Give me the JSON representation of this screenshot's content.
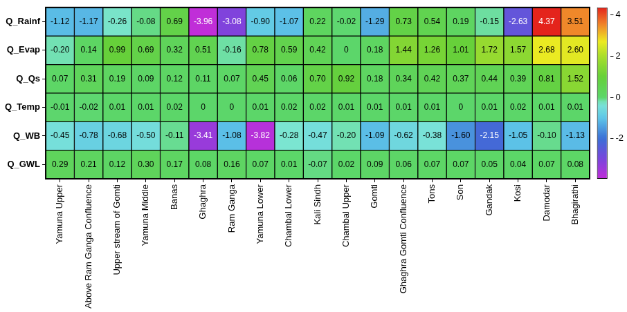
{
  "chart_data": {
    "type": "heatmap",
    "categories": [
      "Yamuna Upper",
      "Above Ram Ganga Confluence",
      "Upper stream of Gomti",
      "Yamuna Middle",
      "Banas",
      "Ghaghra",
      "Ram Ganga",
      "Yamuna Lower",
      "Chambal Lower",
      "Kali Sindh",
      "Chambal Upper",
      "Gomti",
      "Ghaghra Gomti Confluence",
      "Tons",
      "Son",
      "Gandak",
      "Kosi",
      "Damodar",
      "Bhagirathi"
    ],
    "series": [
      {
        "name": "Q_Rainf",
        "values": [
          -1.12,
          -1.17,
          -0.26,
          -0.08,
          0.69,
          -3.96,
          -3.08,
          -0.9,
          -1.07,
          0.22,
          -0.02,
          -1.29,
          0.73,
          0.54,
          0.19,
          -0.15,
          -2.63,
          4.37,
          3.51
        ],
        "value_labels": [
          "-1.12",
          "-1.17",
          "-0.26",
          "-0.08",
          "0.69",
          "-3.96",
          "-3.08",
          "-0.90",
          "-1.07",
          "0.22",
          "-0.02",
          "-1.29",
          "0.73",
          "0.54",
          "0.19",
          "-0.15",
          "-2.63",
          "4.37",
          "3.51"
        ]
      },
      {
        "name": "Q_Evap",
        "values": [
          -0.2,
          0.14,
          0.99,
          0.69,
          0.32,
          0.51,
          -0.16,
          0.78,
          0.59,
          0.42,
          0,
          0.18,
          1.44,
          1.26,
          1.01,
          1.72,
          1.57,
          2.68,
          2.6
        ],
        "value_labels": [
          "-0.20",
          "0.14",
          "0.99",
          "0.69",
          "0.32",
          "0.51",
          "-0.16",
          "0.78",
          "0.59",
          "0.42",
          "0",
          "0.18",
          "1.44",
          "1.26",
          "1.01",
          "1.72",
          "1.57",
          "2.68",
          "2.60"
        ]
      },
      {
        "name": "Q_Qs",
        "values": [
          0.07,
          0.31,
          0.19,
          0.09,
          0.12,
          0.11,
          0.07,
          0.45,
          0.06,
          0.7,
          0.92,
          0.18,
          0.34,
          0.42,
          0.37,
          0.44,
          0.39,
          0.81,
          1.52
        ],
        "value_labels": [
          "0.07",
          "0.31",
          "0.19",
          "0.09",
          "0.12",
          "0.11",
          "0.07",
          "0.45",
          "0.06",
          "0.70",
          "0.92",
          "0.18",
          "0.34",
          "0.42",
          "0.37",
          "0.44",
          "0.39",
          "0.81",
          "1.52"
        ]
      },
      {
        "name": "Q_Temp",
        "values": [
          -0.01,
          -0.02,
          0.01,
          0.01,
          0.02,
          0,
          0,
          0.01,
          0.02,
          0.02,
          0.01,
          0.01,
          0.01,
          0.01,
          0,
          0.01,
          0.02,
          0.01,
          0.01
        ],
        "value_labels": [
          "-0.01",
          "-0.02",
          "0.01",
          "0.01",
          "0.02",
          "0",
          "0",
          "0.01",
          "0.02",
          "0.02",
          "0.01",
          "0.01",
          "0.01",
          "0.01",
          "0",
          "0.01",
          "0.02",
          "0.01",
          "0.01"
        ]
      },
      {
        "name": "Q_WB",
        "values": [
          -0.45,
          -0.78,
          -0.68,
          -0.5,
          -0.11,
          -3.41,
          -1.08,
          -3.82,
          -0.28,
          -0.47,
          -0.2,
          -1.09,
          -0.62,
          -0.38,
          -1.6,
          -2.15,
          -1.05,
          -0.1,
          -1.13
        ],
        "value_labels": [
          "-0.45",
          "-0.78",
          "-0.68",
          "-0.50",
          "-0.11",
          "-3.41",
          "-1.08",
          "-3.82",
          "-0.28",
          "-0.47",
          "-0.20",
          "-1.09",
          "-0.62",
          "-0.38",
          "-1.60",
          "-2.15",
          "-1.05",
          "-0.10",
          "-1.13"
        ]
      },
      {
        "name": "Q_GWL",
        "values": [
          0.29,
          0.21,
          0.12,
          0.3,
          0.17,
          0.08,
          0.16,
          0.07,
          0.01,
          -0.07,
          0.02,
          0.09,
          0.06,
          0.07,
          0.07,
          0.05,
          0.04,
          0.07,
          0.08
        ],
        "value_labels": [
          "0.29",
          "0.21",
          "0.12",
          "0.30",
          "0.17",
          "0.08",
          "0.16",
          "0.07",
          "0.01",
          "-0.07",
          "0.02",
          "0.09",
          "0.06",
          "0.07",
          "0.07",
          "0.05",
          "0.04",
          "0.07",
          "0.08"
        ]
      }
    ],
    "data_labels": true,
    "color_range": [
      -3.96,
      4.37
    ],
    "color_ticks": [
      -2,
      0,
      2,
      4
    ]
  }
}
